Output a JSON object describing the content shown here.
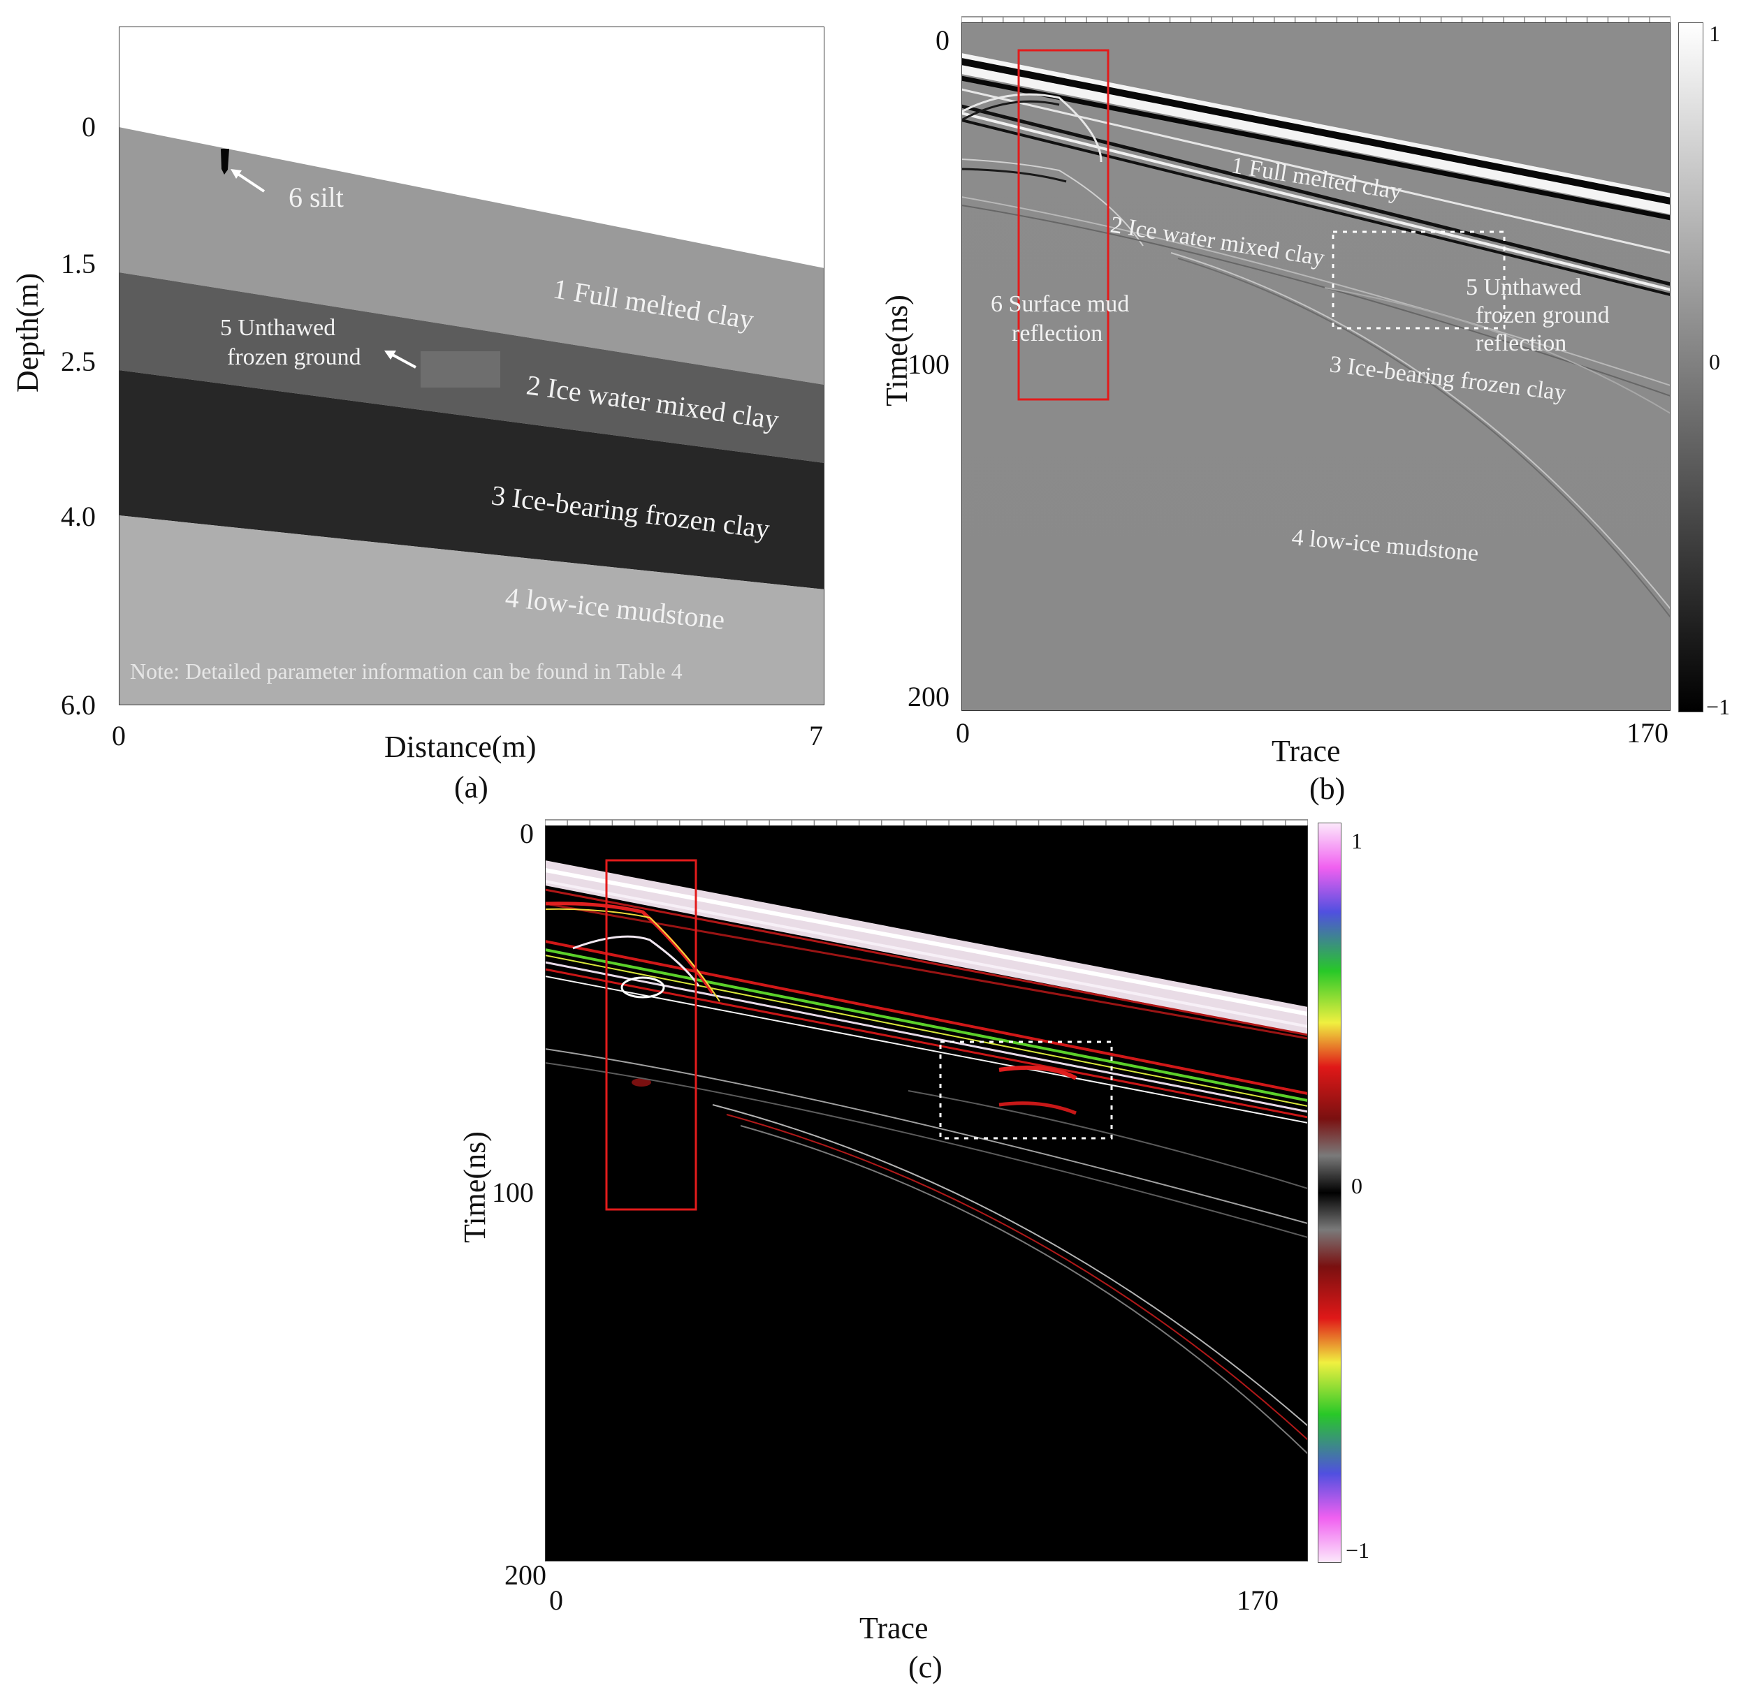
{
  "panel_a": {
    "caption": "(a)",
    "ylabel": "Depth(m)",
    "xlabel": "Distance(m)",
    "yticks": [
      "0",
      "1.5",
      "2.5",
      "4.0",
      "6.0"
    ],
    "xticks": [
      "0",
      "7"
    ],
    "layers": [
      {
        "label": "1 Full melted clay",
        "color": "#9a9a9a"
      },
      {
        "label": "2 Ice water mixed clay",
        "color": "#5c5c5c"
      },
      {
        "label": "3 Ice-bearing frozen clay",
        "color": "#272727"
      },
      {
        "label": "4 low-ice mudstone",
        "color": "#aeaeae"
      }
    ],
    "unthawed_label_1": "5 Unthawed",
    "unthawed_label_2": "frozen ground",
    "silt_label": "6 silt",
    "note": "Note: Detailed parameter information can be found in Table 4"
  },
  "panel_b": {
    "caption": "(b)",
    "ylabel": "Time(ns)",
    "xlabel": "Trace",
    "yticks": [
      "0",
      "100",
      "200"
    ],
    "xticks": [
      "0",
      "170"
    ],
    "colorbar_ticks": [
      "1",
      "0",
      "−1"
    ],
    "labels": {
      "layer1": "1 Full melted clay",
      "layer2": "2 Ice water mixed clay",
      "layer3": "3 Ice-bearing frozen clay",
      "layer4": "4 low-ice mudstone",
      "mud_1": "6 Surface mud",
      "mud_2": "reflection",
      "unthawed_1": "5 Unthawed",
      "unthawed_2": "frozen ground",
      "unthawed_3": "reflection"
    }
  },
  "panel_c": {
    "caption": "(c)",
    "ylabel": "Time(ns)",
    "xlabel": "Trace",
    "yticks": [
      "0",
      "100",
      "200"
    ],
    "xticks": [
      "0",
      "170"
    ],
    "colorbar_ticks": [
      "1",
      "0",
      "−1"
    ]
  }
}
